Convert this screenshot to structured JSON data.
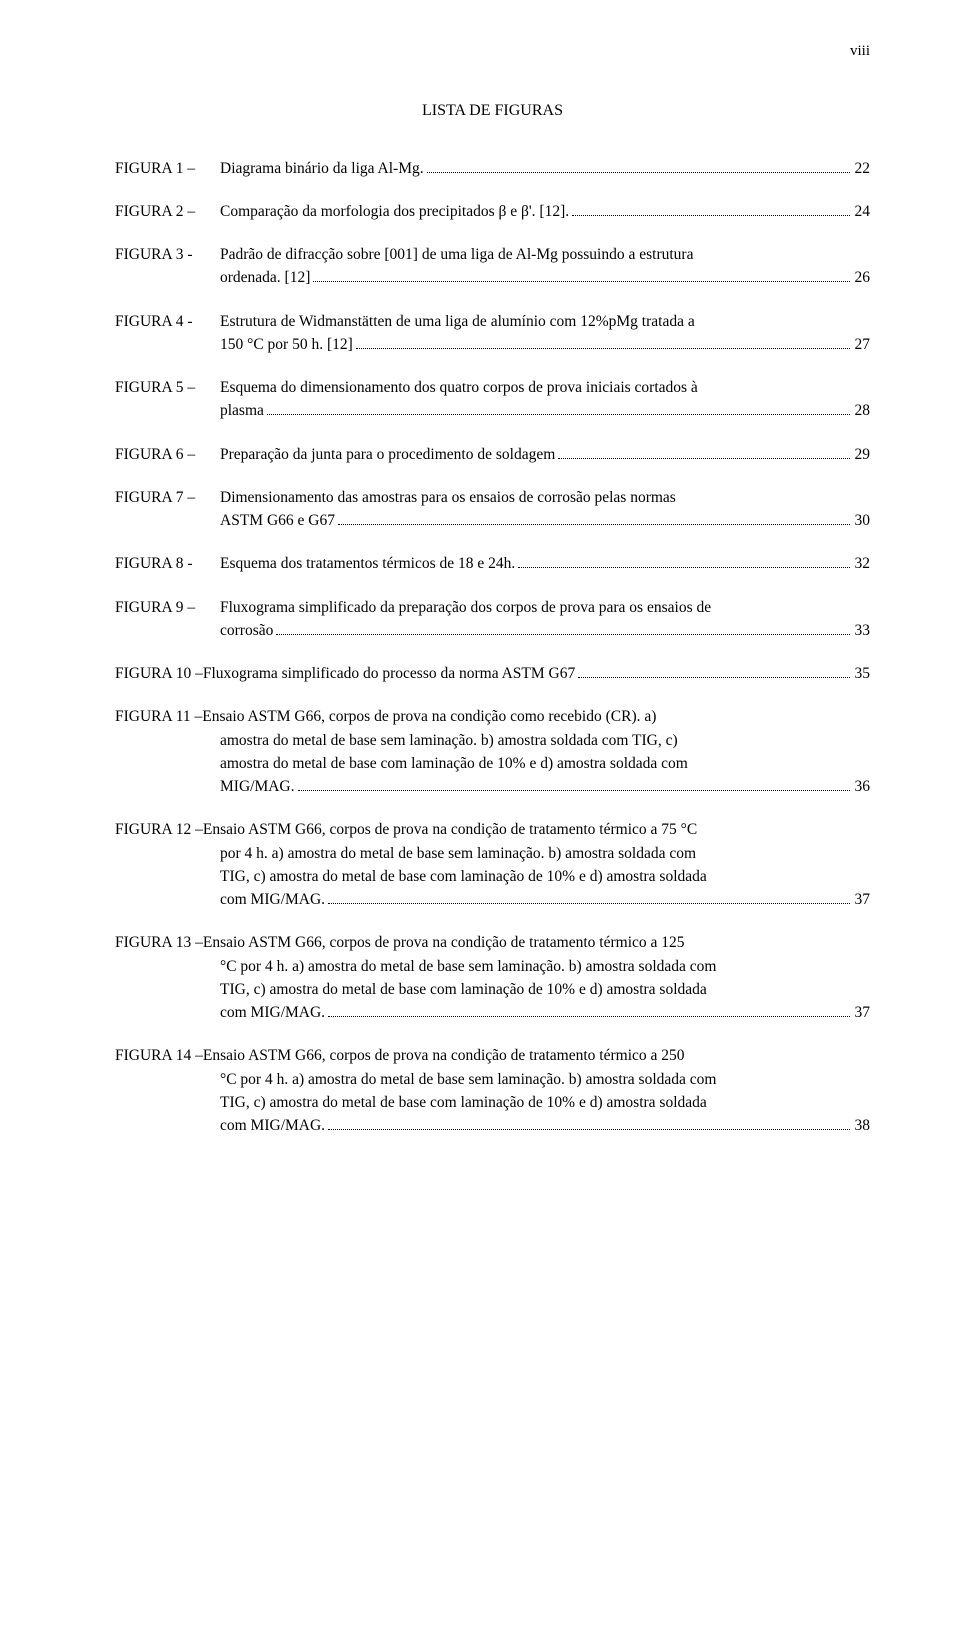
{
  "page_number": "viii",
  "title": "LISTA DE FIGURAS",
  "entries": [
    {
      "label": "FIGURA 1 –",
      "lines": [
        "Diagrama binário da liga Al-Mg."
      ],
      "page": "22"
    },
    {
      "label": "FIGURA 2 –",
      "lines": [
        "Comparação da morfologia dos precipitados β e β'. [12]."
      ],
      "page": "24"
    },
    {
      "label": "FIGURA 3 -",
      "lines": [
        "Padrão de difracção sobre [001] de uma liga de Al-Mg possuindo a estrutura",
        "ordenada. [12]"
      ],
      "page": "26"
    },
    {
      "label": "FIGURA 4 -",
      "lines": [
        "Estrutura de Widmanstätten de uma liga de alumínio com 12%pMg tratada a",
        "150 °C por 50 h. [12]"
      ],
      "page": "27"
    },
    {
      "label": "FIGURA 5 –",
      "lines": [
        "Esquema do dimensionamento dos quatro corpos de prova iniciais cortados à",
        "plasma"
      ],
      "page": "28"
    },
    {
      "label": "FIGURA 6 –",
      "lines": [
        "Preparação da junta para o procedimento de soldagem"
      ],
      "page": "29"
    },
    {
      "label": "FIGURA 7 –",
      "lines": [
        "Dimensionamento das amostras para os ensaios de corrosão pelas normas",
        "ASTM G66 e G67"
      ],
      "page": "30"
    },
    {
      "label": "FIGURA 8 -",
      "lines": [
        "Esquema dos tratamentos térmicos de 18 e 24h."
      ],
      "page": "32"
    },
    {
      "label": "FIGURA 9 –",
      "lines": [
        "Fluxograma simplificado da preparação dos corpos de prova para os ensaios de",
        "corrosão"
      ],
      "page": "33"
    },
    {
      "label": "FIGURA 10 –",
      "lines": [
        "Fluxograma simplificado do processo da norma ASTM G67"
      ],
      "page": "35",
      "flat": true
    },
    {
      "label": "FIGURA 11 –",
      "lines": [
        "Ensaio ASTM G66, corpos de prova na condição como recebido (CR). a)",
        "amostra do metal de base sem laminação. b) amostra soldada com TIG, c)",
        "amostra do metal de base com laminação de 10% e d) amostra soldada com",
        "MIG/MAG."
      ],
      "page": "36",
      "flat": true
    },
    {
      "label": "FIGURA 12 –",
      "lines": [
        "Ensaio ASTM G66, corpos de prova na condição de tratamento térmico a 75 °C",
        "por 4 h. a) amostra do metal de base sem laminação. b) amostra soldada com",
        "TIG, c) amostra do metal de base com laminação de 10% e d) amostra soldada",
        "com MIG/MAG."
      ],
      "page": "37",
      "flat": true
    },
    {
      "label": "FIGURA 13 –",
      "lines": [
        "Ensaio ASTM G66, corpos de prova na condição de tratamento térmico a 125",
        "°C por 4 h. a) amostra do metal de base sem laminação. b) amostra soldada com",
        "TIG, c) amostra do metal de base com laminação de 10% e d) amostra soldada",
        "com MIG/MAG."
      ],
      "page": "37",
      "flat": true
    },
    {
      "label": "FIGURA 14 –",
      "lines": [
        "Ensaio ASTM G66, corpos de prova na condição de tratamento térmico a 250",
        "°C por 4 h. a) amostra do metal de base sem laminação. b) amostra soldada com",
        "TIG, c) amostra do metal de base com laminação de 10% e d) amostra soldada",
        "com MIG/MAG."
      ],
      "page": "38",
      "flat": true
    }
  ]
}
